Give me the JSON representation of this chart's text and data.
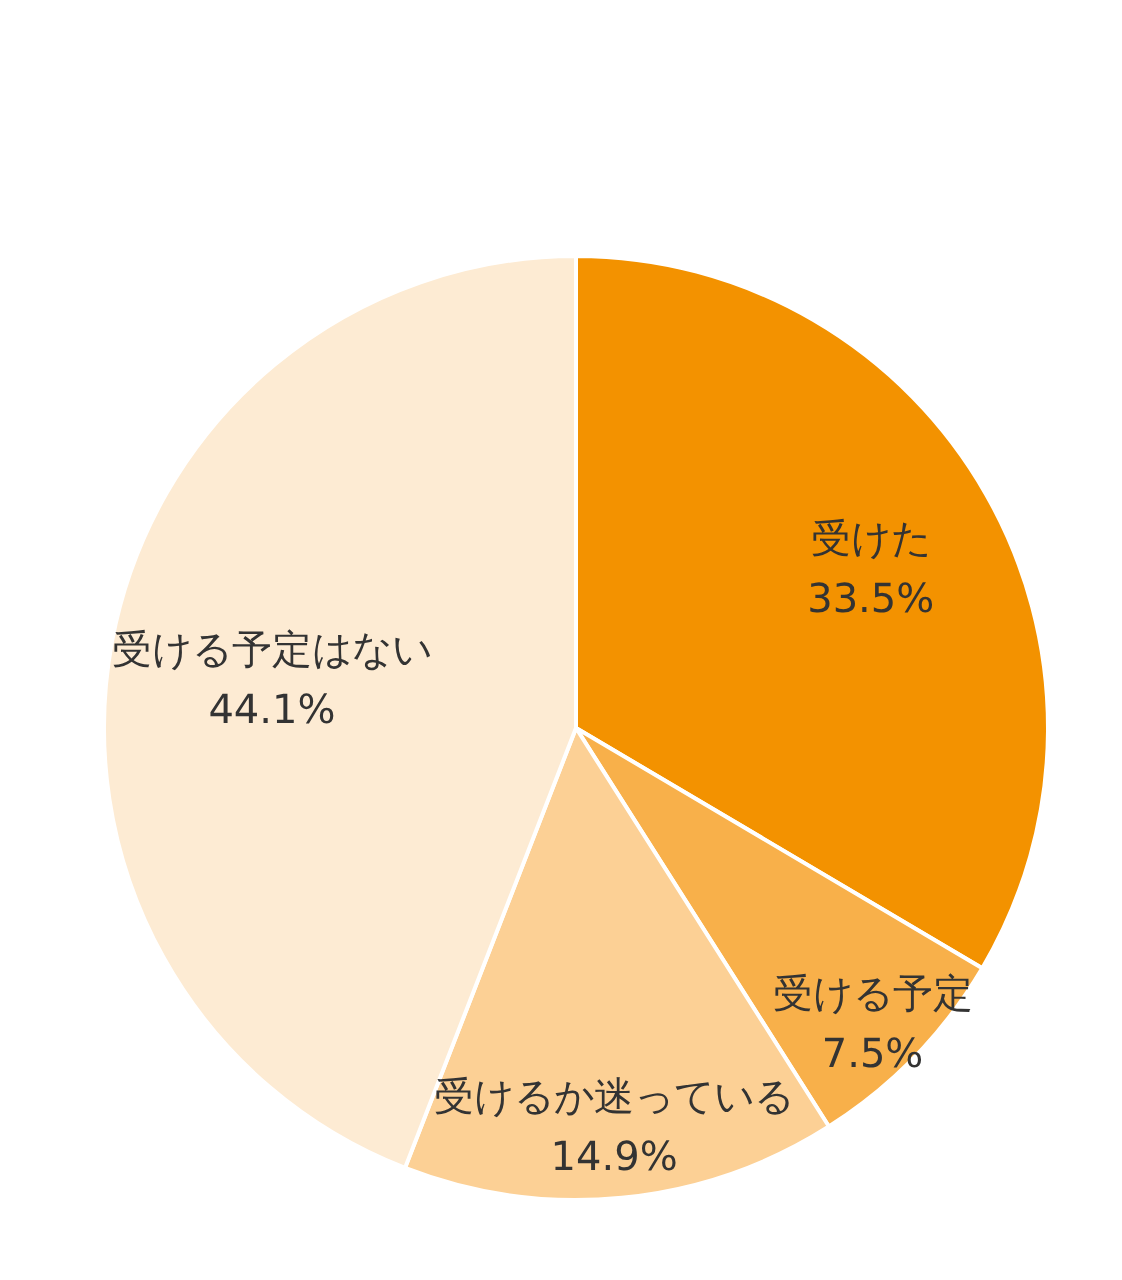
{
  "chart_data": {
    "type": "pie",
    "categories": [
      "受けた",
      "受ける予定",
      "受けるか迷っている",
      "受ける予定はない"
    ],
    "values": [
      33.5,
      7.5,
      14.9,
      44.1
    ],
    "colors": [
      "#f39200",
      "#f8b04a",
      "#fcd095",
      "#fdebd3"
    ],
    "value_labels": [
      "33.5%",
      "7.5%",
      "14.9%",
      "44.1%"
    ]
  }
}
